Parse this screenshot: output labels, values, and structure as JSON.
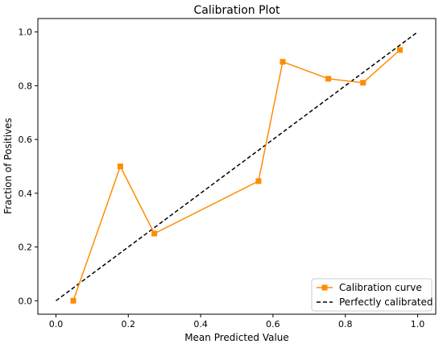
{
  "chart_data": {
    "type": "line",
    "title": "Calibration Plot",
    "xlabel": "Mean Predicted Value",
    "ylabel": "Fraction of Positives",
    "xlim": [
      -0.05,
      1.05
    ],
    "ylim": [
      -0.05,
      1.05
    ],
    "xticks": [
      0.0,
      0.2,
      0.4,
      0.6,
      0.8,
      1.0
    ],
    "yticks": [
      0.0,
      0.2,
      0.4,
      0.6,
      0.8,
      1.0
    ],
    "xtick_labels": [
      "0.0",
      "0.2",
      "0.4",
      "0.6",
      "0.8",
      "1.0"
    ],
    "ytick_labels": [
      "0.0",
      "0.2",
      "0.4",
      "0.6",
      "0.8",
      "1.0"
    ],
    "grid": false,
    "legend_position": "bottom-right",
    "series": [
      {
        "name": "Calibration curve",
        "style": "solid",
        "marker": "square",
        "color": "#ff8c00",
        "x": [
          0.048,
          0.178,
          0.272,
          0.56,
          0.627,
          0.753,
          0.849,
          0.951
        ],
        "y": [
          0.0,
          0.5,
          0.25,
          0.445,
          0.889,
          0.826,
          0.811,
          0.933
        ]
      },
      {
        "name": "Perfectly calibrated",
        "style": "dashed",
        "marker": "none",
        "color": "#000000",
        "x": [
          0.0,
          1.0
        ],
        "y": [
          0.0,
          1.0
        ]
      }
    ]
  }
}
